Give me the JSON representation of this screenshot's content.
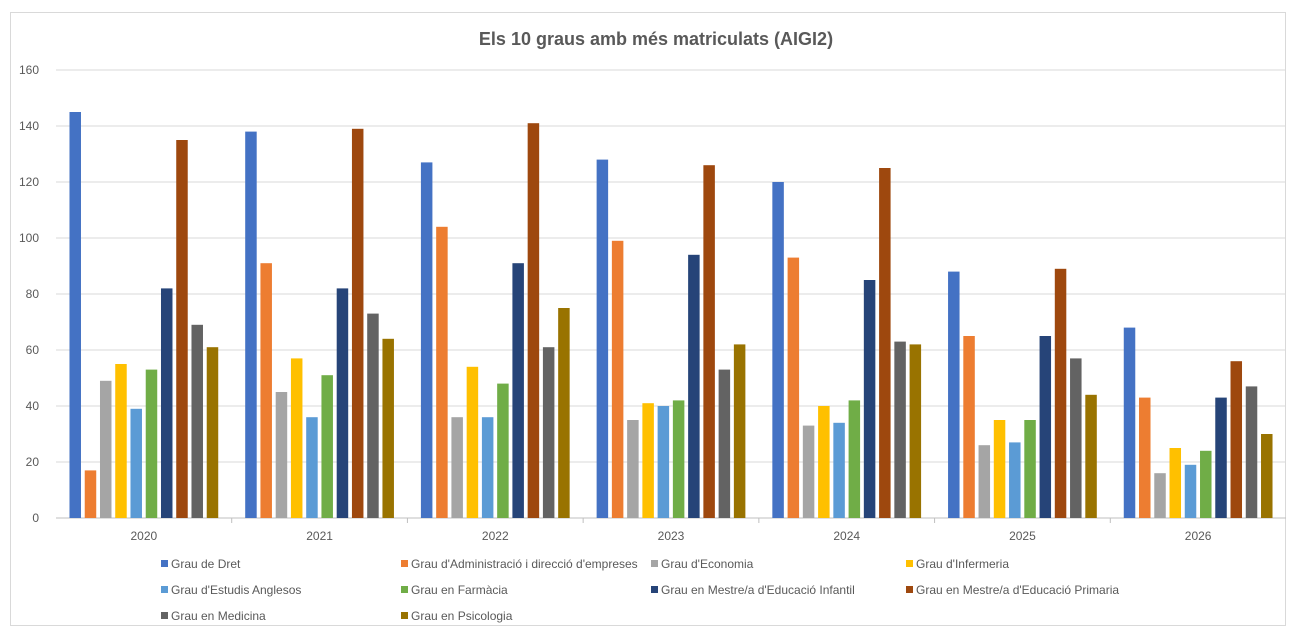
{
  "chart_data": {
    "type": "bar",
    "title": "Els 10 graus amb més matriculats (AIGI2)",
    "xlabel": "",
    "ylabel": "",
    "ylim": [
      0,
      160
    ],
    "yticks": [
      0,
      20,
      40,
      60,
      80,
      100,
      120,
      140,
      160
    ],
    "grid": true,
    "legend_position": "bottom",
    "categories": [
      "2020",
      "2021",
      "2022",
      "2023",
      "2024",
      "2025",
      "2026"
    ],
    "series": [
      {
        "name": "Grau de Dret",
        "color": "#4472C4",
        "values": [
          145,
          138,
          127,
          128,
          120,
          88,
          68
        ]
      },
      {
        "name": "Grau d'Administració i direcció d'empreses",
        "color": "#ED7D31",
        "values": [
          17,
          91,
          104,
          99,
          93,
          65,
          43
        ]
      },
      {
        "name": "Grau d'Economia",
        "color": "#A5A5A5",
        "values": [
          49,
          45,
          36,
          35,
          33,
          26,
          16
        ]
      },
      {
        "name": "Grau d'Infermeria",
        "color": "#FFC000",
        "values": [
          55,
          57,
          54,
          41,
          40,
          35,
          25
        ]
      },
      {
        "name": "Grau d'Estudis Anglesos",
        "color": "#5B9BD5",
        "values": [
          39,
          36,
          36,
          40,
          34,
          27,
          19
        ]
      },
      {
        "name": "Grau en Farmàcia",
        "color": "#70AD47",
        "values": [
          53,
          51,
          48,
          42,
          42,
          35,
          24
        ]
      },
      {
        "name": "Grau en Mestre/a d'Educació Infantil",
        "color": "#264478",
        "values": [
          82,
          82,
          91,
          94,
          85,
          65,
          43
        ]
      },
      {
        "name": "Grau en Mestre/a d'Educació Primaria",
        "color": "#9E480E",
        "values": [
          135,
          139,
          141,
          126,
          125,
          89,
          56
        ]
      },
      {
        "name": "Grau en Medicina",
        "color": "#636363",
        "values": [
          69,
          73,
          61,
          53,
          63,
          57,
          47
        ]
      },
      {
        "name": "Grau en Psicologia",
        "color": "#997300",
        "values": [
          61,
          64,
          75,
          62,
          62,
          44,
          30
        ]
      }
    ]
  }
}
